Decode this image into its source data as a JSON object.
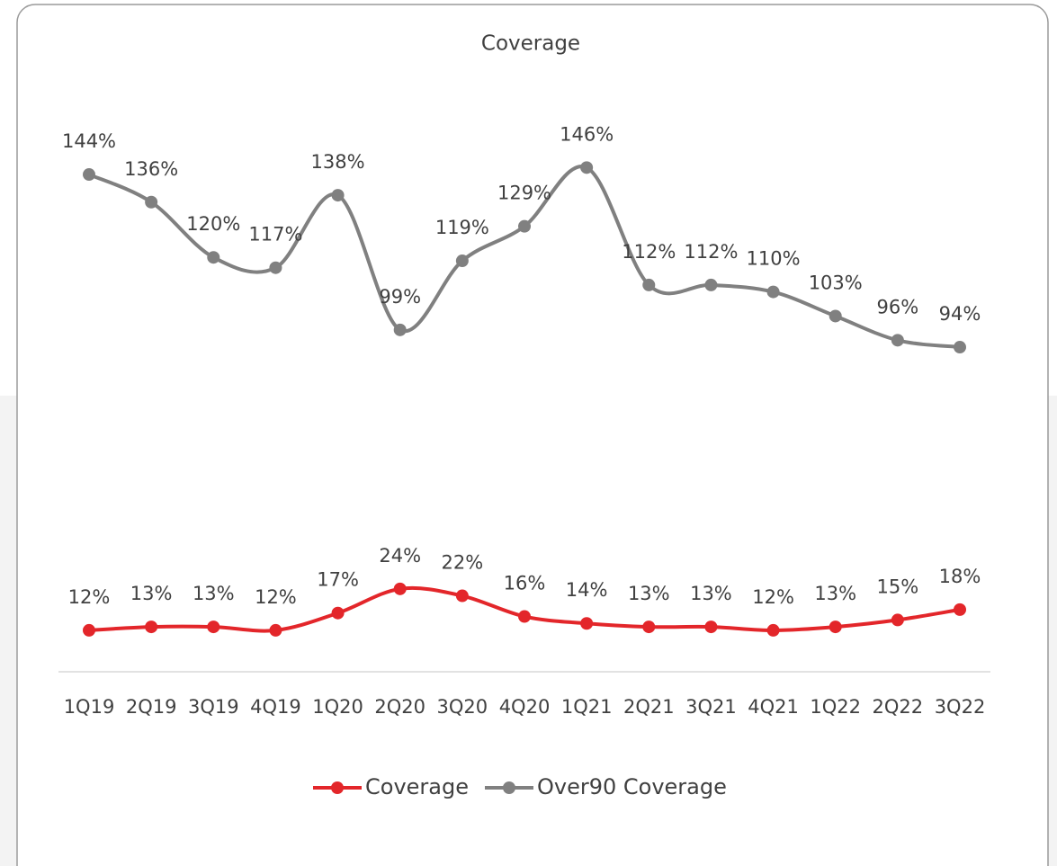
{
  "chart_data": {
    "type": "line",
    "title": "Coverage",
    "categories": [
      "1Q19",
      "2Q19",
      "3Q19",
      "4Q19",
      "1Q20",
      "2Q20",
      "3Q20",
      "4Q20",
      "1Q21",
      "2Q21",
      "3Q21",
      "4Q21",
      "1Q22",
      "2Q22",
      "3Q22"
    ],
    "series": [
      {
        "name": "Coverage",
        "color": "#e3262a",
        "values": [
          12,
          13,
          13,
          12,
          17,
          24,
          22,
          16,
          14,
          13,
          13,
          12,
          13,
          15,
          18
        ],
        "value_labels": [
          "12%",
          "13%",
          "13%",
          "12%",
          "17%",
          "24%",
          "22%",
          "16%",
          "14%",
          "13%",
          "13%",
          "12%",
          "13%",
          "15%",
          "18%"
        ]
      },
      {
        "name": "Over90 Coverage",
        "color": "#808080",
        "values": [
          144,
          136,
          120,
          117,
          138,
          99,
          119,
          129,
          146,
          112,
          112,
          110,
          103,
          96,
          94
        ],
        "value_labels": [
          "144%",
          "136%",
          "120%",
          "117%",
          "138%",
          "99%",
          "119%",
          "129%",
          "146%",
          "112%",
          "112%",
          "110%",
          "103%",
          "96%",
          "94%"
        ]
      }
    ],
    "ylim": [
      0,
      150
    ],
    "legend": "bottom",
    "smooth": true
  }
}
